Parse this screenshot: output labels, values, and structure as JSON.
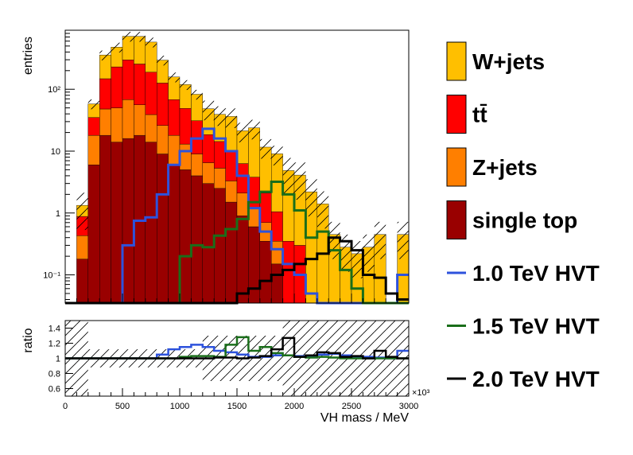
{
  "chart_data": [
    {
      "type": "histogram-stacked",
      "xlabel": "",
      "ylabel": "entries",
      "yscale": "log",
      "ylim": [
        0.035,
        900
      ],
      "xlim": [
        0,
        3000
      ],
      "bin_width": 100,
      "bin_edges_start": 0,
      "ytick_labels": [
        "10⁻¹",
        "1",
        "10",
        "10²"
      ],
      "ytick_values": [
        0.1,
        1,
        10,
        100
      ],
      "stack_order_bottom_to_top": [
        "single top",
        "Z+jets",
        "tt̄",
        "W+jets"
      ],
      "stacked_series": [
        {
          "name": "single top",
          "color": "#990000",
          "values": [
            0,
            0.18,
            6,
            18,
            14,
            16,
            18,
            14,
            9,
            6,
            5,
            4,
            3,
            2.5,
            1.5,
            0.9,
            0.6,
            0.35,
            0.15,
            0,
            0,
            0,
            0,
            0,
            0,
            0,
            0,
            0,
            0,
            0
          ]
        },
        {
          "name": "Z+jets",
          "color": "#ff7f00",
          "values": [
            0,
            0.25,
            12,
            30,
            36,
            52,
            38,
            25,
            17,
            12,
            8,
            5,
            3.5,
            2.8,
            1.8,
            1.2,
            0.6,
            0.35,
            0.2,
            0,
            0,
            0,
            0,
            0,
            0,
            0,
            0,
            0,
            0,
            0
          ]
        },
        {
          "name": "tt̄",
          "color": "#ff0000",
          "values": [
            0,
            0.45,
            17,
            100,
            180,
            230,
            200,
            150,
            100,
            50,
            36,
            22,
            12,
            9,
            7,
            4.2,
            2.6,
            1.4,
            0.7,
            0.35,
            0.3,
            0,
            0,
            0,
            0,
            0,
            0,
            0,
            0,
            0
          ]
        },
        {
          "name": "W+jets",
          "color": "#ffbf00",
          "values": [
            0,
            0.45,
            23,
            210,
            250,
            420,
            460,
            390,
            170,
            90,
            70,
            52,
            30,
            25,
            26,
            15,
            20,
            9.5,
            8,
            4.5,
            3.8,
            2.2,
            1.4,
            0.45,
            0.28,
            0.22,
            0.28,
            0.45,
            0,
            0.45
          ]
        }
      ],
      "signal_series": [
        {
          "name": "1.0 TeV HVT",
          "color": "#2d52dc",
          "values": [
            0,
            0,
            0,
            0,
            0,
            0.3,
            0.75,
            0.85,
            2,
            6,
            10,
            16,
            23,
            16,
            10,
            4,
            1.2,
            0.5,
            0.26,
            0.15,
            0.1,
            0.05,
            0,
            0,
            0,
            0,
            0,
            0,
            0,
            0.1
          ]
        },
        {
          "name": "1.5 TeV HVT",
          "color": "#1a6e1a",
          "values": [
            0,
            0,
            0,
            0,
            0,
            0,
            0,
            0,
            0,
            0,
            0.2,
            0.3,
            0.28,
            0.43,
            0.55,
            0.8,
            1.5,
            2.2,
            3.2,
            2,
            1.1,
            0.4,
            0.5,
            0.25,
            0.12,
            0.06,
            0,
            0,
            0,
            0
          ]
        },
        {
          "name": "2.0 TeV HVT",
          "color": "#000000",
          "values": [
            0,
            0,
            0,
            0,
            0,
            0,
            0,
            0,
            0,
            0,
            0,
            0,
            0,
            0,
            0,
            0.05,
            0.06,
            0.08,
            0.1,
            0.12,
            0.15,
            0.18,
            0.22,
            0.4,
            0.35,
            0.25,
            0.1,
            0.09,
            0.05,
            0.04
          ]
        }
      ]
    },
    {
      "type": "ratio",
      "xlabel": "VH mass / MeV",
      "ylabel": "ratio",
      "xlim": [
        0,
        3000
      ],
      "ylim": [
        0.5,
        1.5
      ],
      "x_multiplier": "×10³",
      "xtick_labels": [
        "0",
        "500",
        "1000",
        "1500",
        "2000",
        "2500",
        "3000"
      ],
      "xtick_values": [
        0,
        500,
        1000,
        1500,
        2000,
        2500,
        3000
      ],
      "ytick_labels": [
        "0.6",
        "0.8",
        "1",
        "1.2",
        "1.4"
      ],
      "ytick_values": [
        0.6,
        0.8,
        1.0,
        1.2,
        1.4
      ],
      "bin_width": 100,
      "ratio_series": [
        {
          "name": "1.0 TeV HVT",
          "color": "#2d52dc",
          "values": [
            1,
            1,
            1,
            1,
            1,
            1,
            1,
            1,
            1.05,
            1.12,
            1.15,
            1.18,
            1.15,
            1.1,
            1.08,
            1.05,
            1.02,
            1.02,
            1.04,
            1.04,
            1.03,
            1.02,
            1.05,
            1.06,
            1.04,
            1.02,
            1.02,
            1.01,
            1.0,
            1.1
          ]
        },
        {
          "name": "1.5 TeV HVT",
          "color": "#1a6e1a",
          "values": [
            1,
            1,
            1,
            1,
            1,
            1,
            1,
            1,
            1,
            1,
            1.02,
            1.03,
            1.03,
            1.02,
            1.18,
            1.28,
            1.1,
            1.15,
            1.07,
            1.04,
            1.02,
            1.01,
            1.02,
            1.01,
            1.0,
            1.0,
            1.0,
            1.0,
            1.0,
            1.0
          ]
        },
        {
          "name": "2.0 TeV HVT",
          "color": "#000000",
          "values": [
            1,
            1,
            1,
            1,
            1,
            1,
            1,
            1,
            1,
            1,
            1,
            1,
            1,
            1.01,
            1.01,
            1.0,
            1.01,
            1.03,
            1.12,
            1.27,
            1.02,
            1.04,
            1.08,
            1.07,
            1.02,
            1.03,
            1.0,
            1.1,
            1.02,
            1.0
          ]
        }
      ]
    }
  ],
  "legend": {
    "position": "right",
    "entries": [
      {
        "label": "W+jets",
        "style": "box",
        "color": "#ffbf00"
      },
      {
        "label": "tt̄",
        "style": "box",
        "color": "#ff0000"
      },
      {
        "label": "Z+jets",
        "style": "box",
        "color": "#ff7f00"
      },
      {
        "label": "single top",
        "style": "box",
        "color": "#990000"
      },
      {
        "label": "1.0 TeV HVT",
        "style": "line",
        "color": "#2d52dc"
      },
      {
        "label": "1.5 TeV HVT",
        "style": "line",
        "color": "#1a6e1a"
      },
      {
        "label": "2.0 TeV HVT",
        "style": "line",
        "color": "#000000"
      }
    ]
  }
}
